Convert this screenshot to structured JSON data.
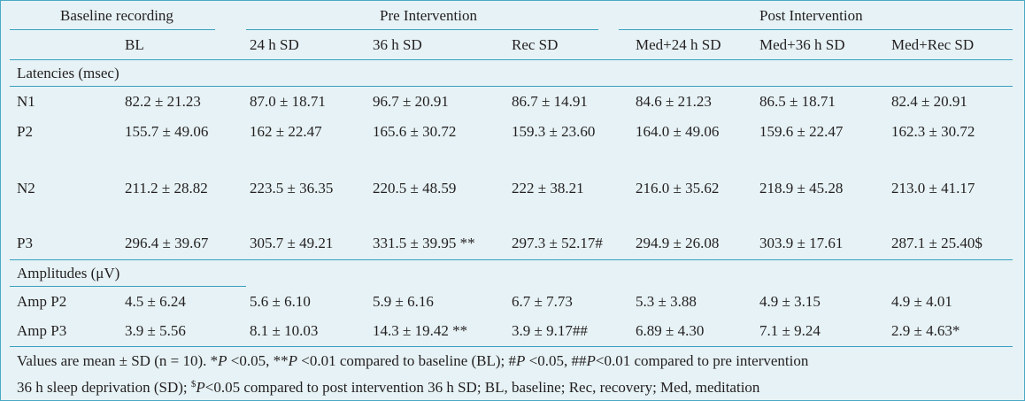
{
  "table": {
    "group_headers": [
      "Baseline recording",
      "Pre Intervention",
      "Post Intervention"
    ],
    "column_headers": [
      "BL",
      "24 h SD",
      "36 h SD",
      "Rec SD",
      "Med+24 h SD",
      "Med+36 h SD",
      "Med+Rec SD"
    ],
    "section_latencies": "Latencies (msec)",
    "section_amplitudes": "Amplitudes (μV)",
    "latency_rows": [
      {
        "label": "N1",
        "cells": [
          "82.2 ± 21.23",
          "87.0 ± 18.71",
          "96.7 ± 20.91",
          "86.7 ± 14.91",
          "84.6 ±  21.23",
          "86.5 ± 18.71",
          "82.4 ± 20.91"
        ]
      },
      {
        "label": "P2",
        "cells": [
          "155.7 ± 49.06",
          "162 ± 22.47",
          "165.6 ± 30.72",
          "159.3 ± 23.60",
          "164.0 ± 49.06",
          "159.6 ± 22.47",
          "162.3 ± 30.72"
        ]
      },
      {
        "label": "N2",
        "cells": [
          "211.2  ±  28.82",
          "223.5  ±  36.35",
          "220.5  ± 48.59",
          "222  ±  38.21",
          "216.0 ±  35.62",
          "218.9 ± 45.28",
          "213.0 ± 41.17"
        ]
      },
      {
        "label": "P3",
        "cells": [
          "296.4 ± 39.67",
          "305.7 ± 49.21",
          "331.5 ± 39.95 **",
          "297.3 ± 52.17#",
          "294.9 ± 26.08",
          "303.9 ± 17.61",
          "287.1 ± 25.40$"
        ]
      }
    ],
    "amplitude_rows": [
      {
        "label": "Amp P2",
        "cells": [
          "4.5 ± 6.24",
          "5.6 ± 6.10",
          "5.9 ± 6.16",
          "6.7 ± 7.73",
          "5.3 ± 3.88",
          "4.9 ± 3.15",
          "4.9 ± 4.01"
        ]
      },
      {
        "label": "Amp P3",
        "cells": [
          "3.9 ± 5.56",
          "8.1 ± 10.03",
          "14.3 ± 19.42 **",
          "3.9 ± 9.17##",
          "6.89 ± 4.30",
          "7.1 ± 9.24",
          "2.9 ± 4.63*"
        ]
      }
    ],
    "footnote": {
      "line1_a": "Values are mean ± SD (n = 10). *",
      "line1_p1": "P",
      "line1_b": " <0.05, **",
      "line1_p2": "P",
      "line1_c": " <0.01 compared to baseline (BL);  #",
      "line1_p3": "P",
      "line1_d": " <0.05, ##",
      "line1_p4": "P",
      "line1_e": "<0.01 compared to pre intervention",
      "line2_a": "36 h sleep deprivation (SD); ",
      "line2_sup": "$",
      "line2_p": "P",
      "line2_b": "<0.05 compared to post intervention 36 h SD; BL, baseline; Rec, recovery; Med, meditation"
    }
  }
}
